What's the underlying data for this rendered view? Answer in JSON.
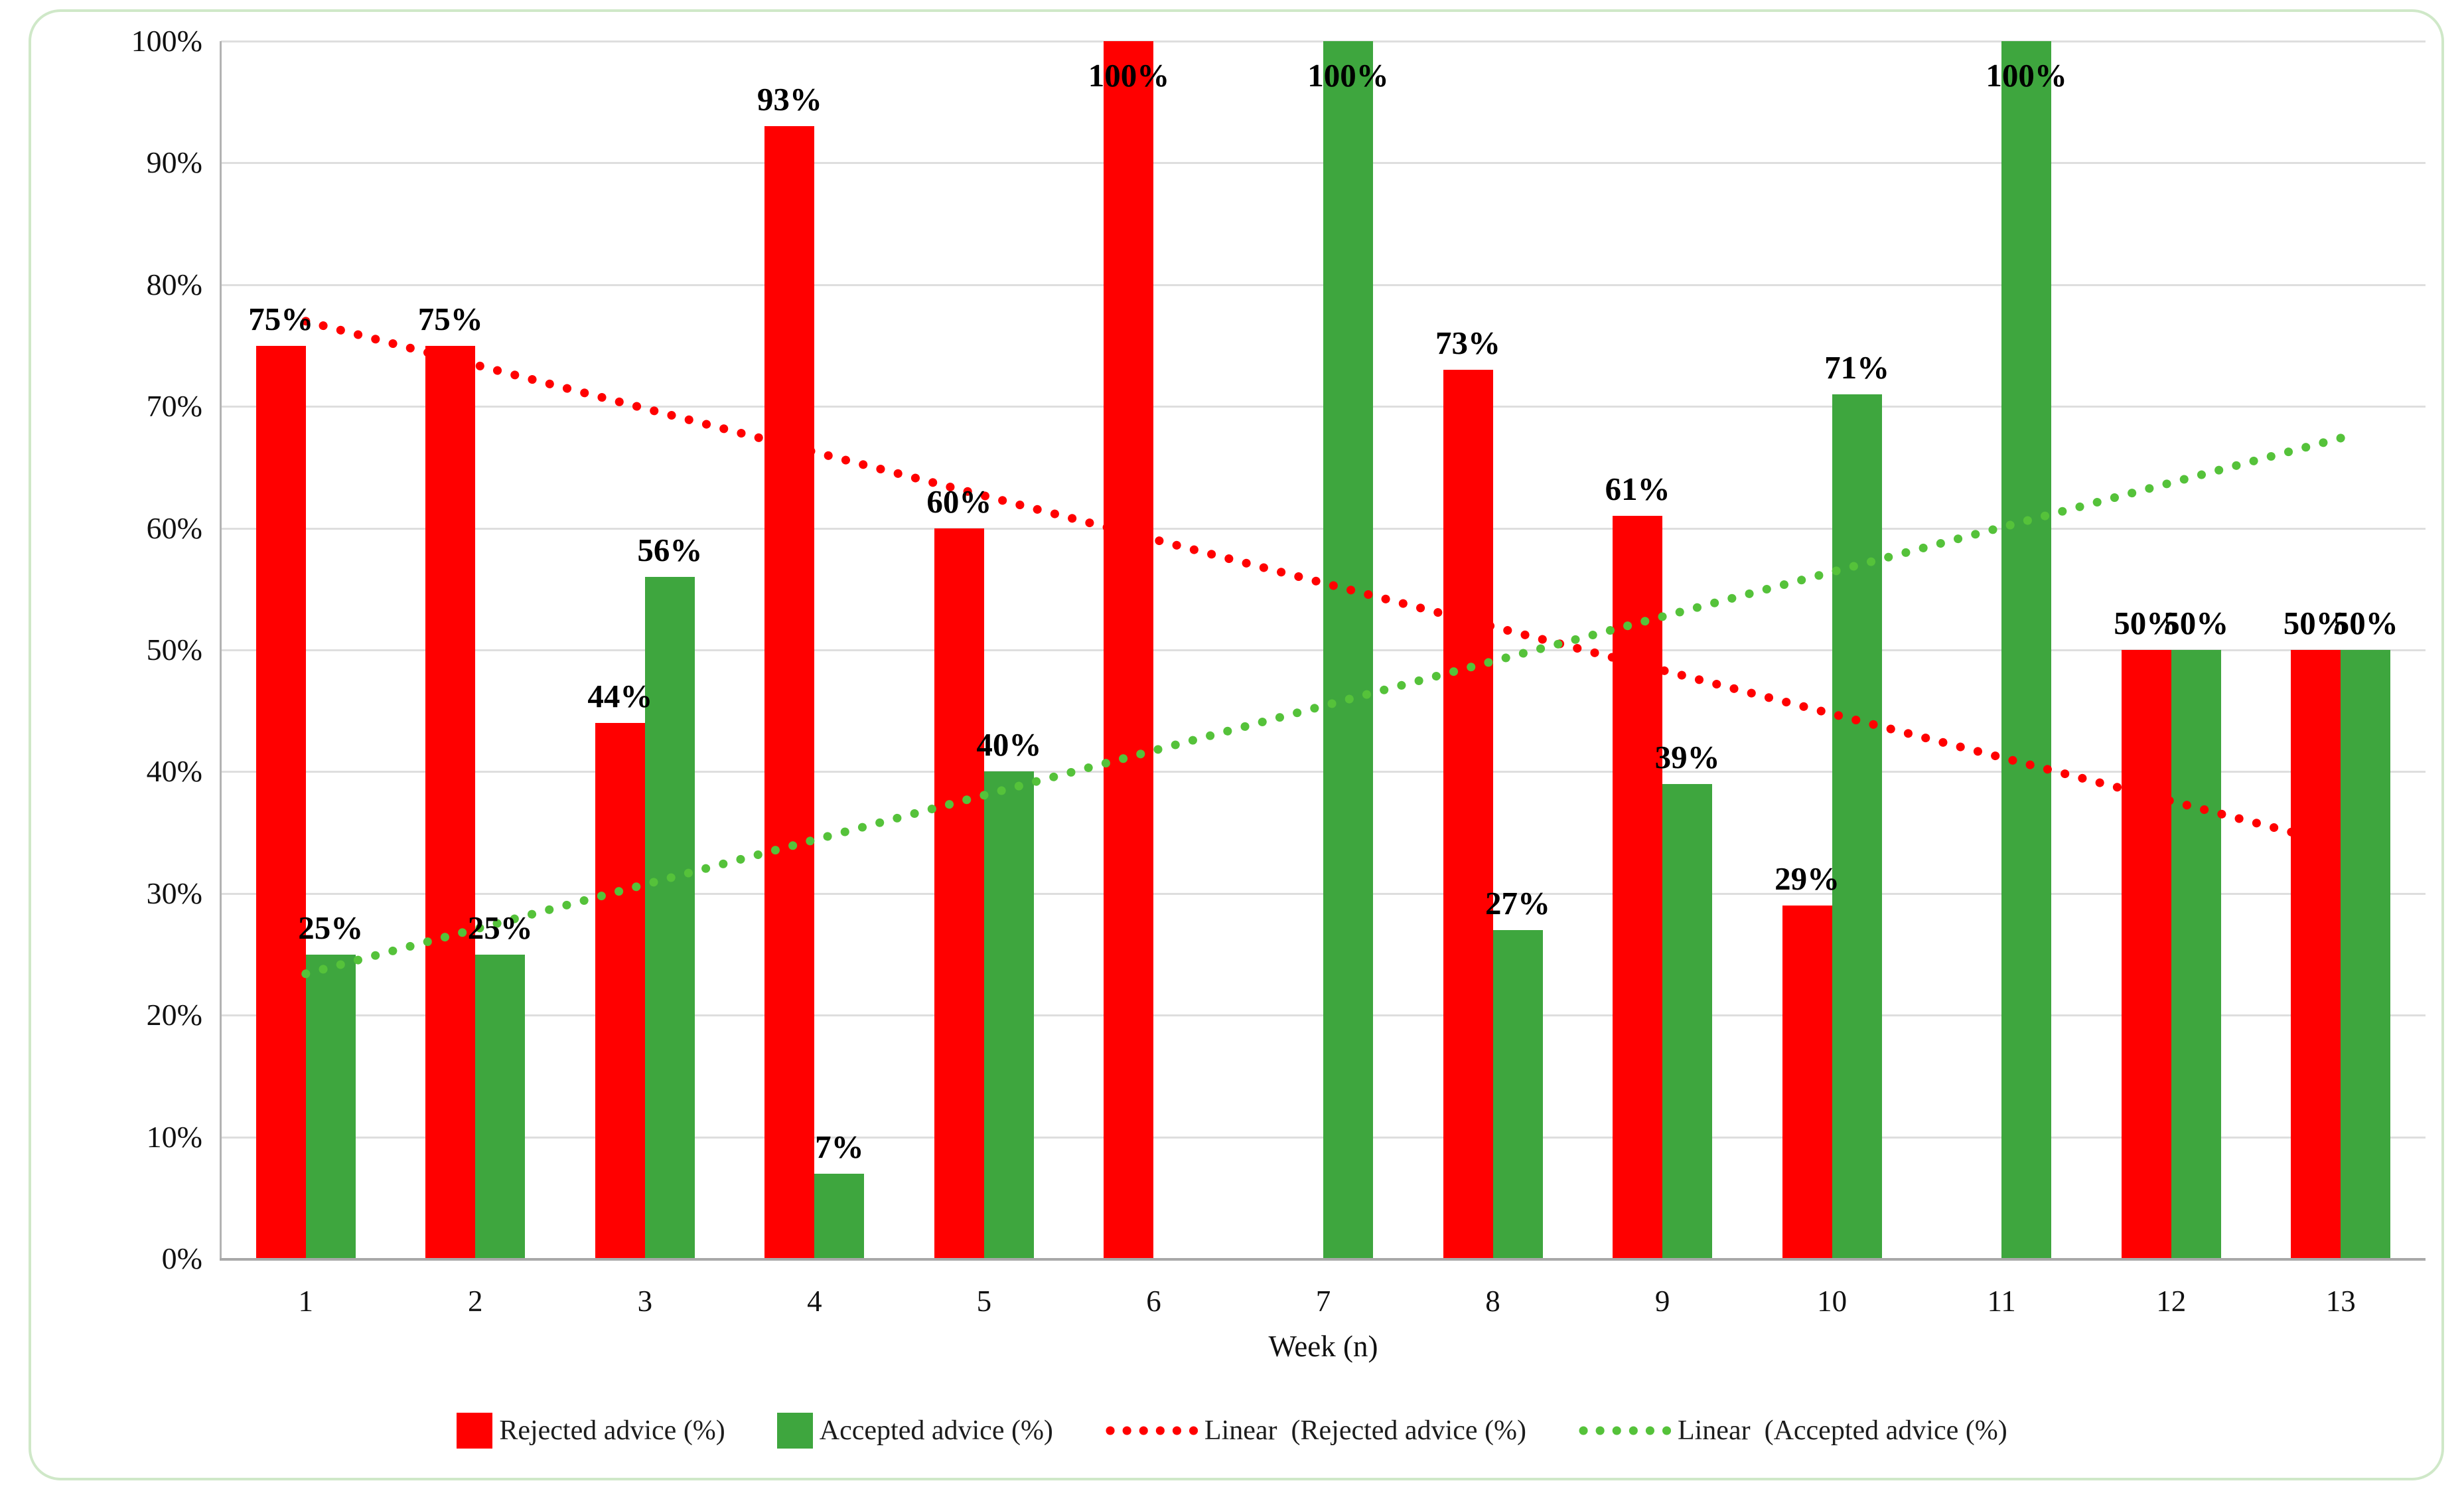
{
  "chart_data": {
    "type": "bar",
    "title": "",
    "xlabel": "Week (n)",
    "ylabel": "",
    "categories": [
      "1",
      "2",
      "3",
      "4",
      "5",
      "6",
      "7",
      "8",
      "9",
      "10",
      "11",
      "12",
      "13"
    ],
    "series": [
      {
        "name": "Rejected advice (%)",
        "color": "#FF0000",
        "values": [
          75,
          75,
          44,
          93,
          60,
          100,
          0,
          73,
          61,
          29,
          0,
          50,
          50
        ],
        "data_labels": [
          "75%",
          "75%",
          "44%",
          "93%",
          "60%",
          "100%",
          "",
          "73%",
          "61%",
          "29%",
          "",
          "50%",
          "50%"
        ]
      },
      {
        "name": "Accepted advice (%)",
        "color": "#3EA63E",
        "values": [
          25,
          25,
          56,
          7,
          40,
          0,
          100,
          27,
          39,
          71,
          100,
          50,
          50
        ],
        "data_labels": [
          "25%",
          "25%",
          "56%",
          "7%",
          "40%",
          "",
          "100%",
          "27%",
          "39%",
          "71%",
          "100%",
          "50%",
          "50%"
        ]
      }
    ],
    "trendlines": [
      {
        "name": "Linear  (Rejected advice (%)",
        "color": "#FF0000",
        "start": 77.0,
        "end": 34.0
      },
      {
        "name": "Linear  (Accepted advice (%)",
        "color": "#55C23A",
        "start": 23.4,
        "end": 67.4
      }
    ],
    "y_axis": {
      "ticks": [
        {
          "label": "0%",
          "value": 0
        },
        {
          "label": "10%",
          "value": 10
        },
        {
          "label": "20%",
          "value": 20
        },
        {
          "label": "30%",
          "value": 30
        },
        {
          "label": "40%",
          "value": 40
        },
        {
          "label": "50%",
          "value": 50
        },
        {
          "label": "60%",
          "value": 60
        },
        {
          "label": "70%",
          "value": 70
        },
        {
          "label": "80%",
          "value": 80
        },
        {
          "label": "90%",
          "value": 90
        },
        {
          "label": "100%",
          "value": 100
        }
      ]
    },
    "ylim": [
      0,
      100
    ],
    "grid": true,
    "data_labels": true,
    "legend_position": "bottom",
    "legend": {
      "items": [
        {
          "label": "Rejected advice (%)",
          "marker": "square",
          "color": "#FF0000"
        },
        {
          "label": "Accepted advice (%)",
          "marker": "square",
          "color": "#3EA63E"
        },
        {
          "label": "Linear  (Rejected advice (%)",
          "marker": "dotted-line",
          "color": "#FF0000"
        },
        {
          "label": "Linear  (Accepted advice (%)",
          "marker": "dotted-line",
          "color": "#55C23A"
        }
      ]
    },
    "colors": {
      "grid": "#dedede",
      "axis": "#a8a8a8",
      "figure_border": "#cfe8c8",
      "data_label_text": "#000000"
    }
  }
}
